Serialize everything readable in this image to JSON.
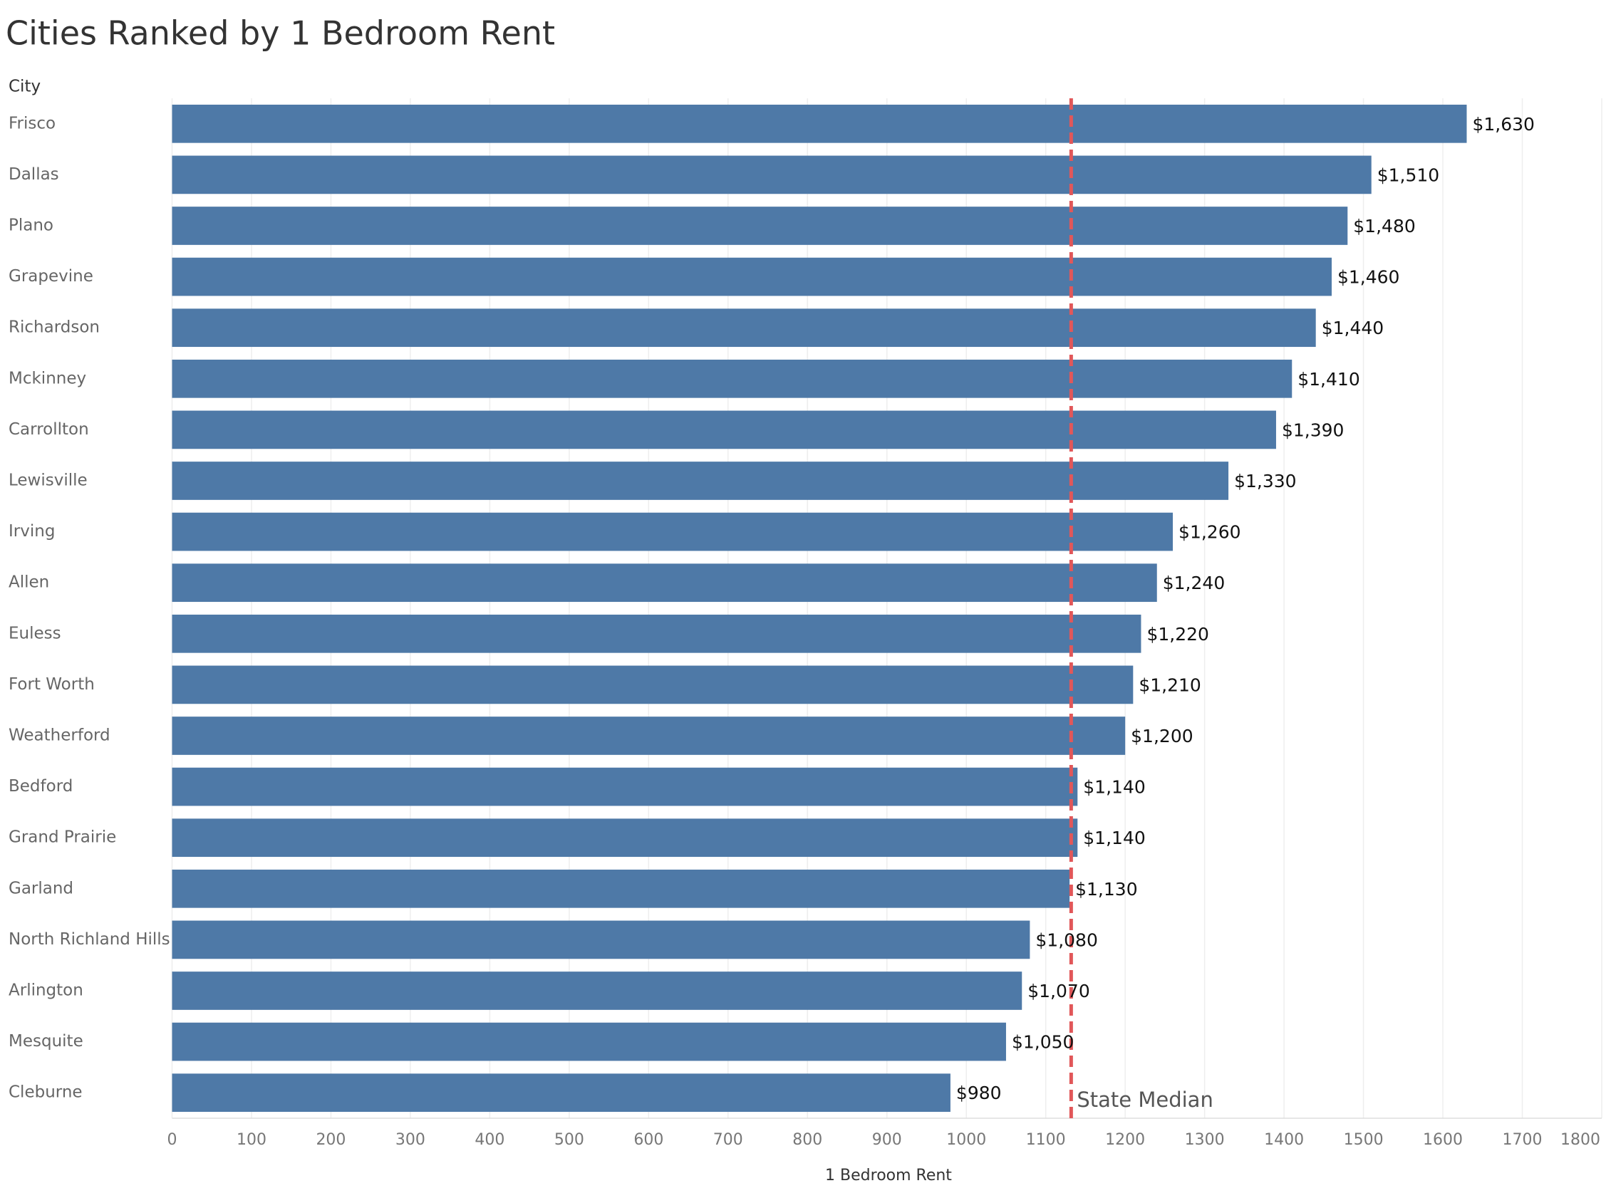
{
  "chart_data": {
    "type": "bar",
    "orientation": "horizontal",
    "title": "Cities Ranked by 1 Bedroom Rent",
    "y_label": "City",
    "x_label": "1 Bedroom Rent",
    "categories": [
      "Frisco",
      "Dallas",
      "Plano",
      "Grapevine",
      "Richardson",
      "Mckinney",
      "Carrollton",
      "Lewisville",
      "Irving",
      "Allen",
      "Euless",
      "Fort Worth",
      "Weatherford",
      "Bedford",
      "Grand Prairie",
      "Garland",
      "North Richland Hills",
      "Arlington",
      "Mesquite",
      "Cleburne"
    ],
    "values": [
      1630,
      1510,
      1480,
      1460,
      1440,
      1410,
      1390,
      1330,
      1260,
      1240,
      1220,
      1210,
      1200,
      1140,
      1140,
      1130,
      1080,
      1070,
      1050,
      980
    ],
    "value_labels": [
      "$1,630",
      "$1,510",
      "$1,480",
      "$1,460",
      "$1,440",
      "$1,410",
      "$1,390",
      "$1,330",
      "$1,260",
      "$1,240",
      "$1,220",
      "$1,210",
      "$1,200",
      "$1,140",
      "$1,140",
      "$1,130",
      "$1,080",
      "$1,070",
      "$1,050",
      "$980"
    ],
    "color": "#4e79a7",
    "xlim": [
      0,
      1800
    ],
    "xticks": [
      0,
      100,
      200,
      300,
      400,
      500,
      600,
      700,
      800,
      900,
      1000,
      1100,
      1200,
      1300,
      1400,
      1500,
      1600,
      1700,
      1800
    ],
    "grid": true,
    "reference_line": {
      "value": 1132,
      "label": "State Median",
      "color": "#e15759"
    }
  }
}
